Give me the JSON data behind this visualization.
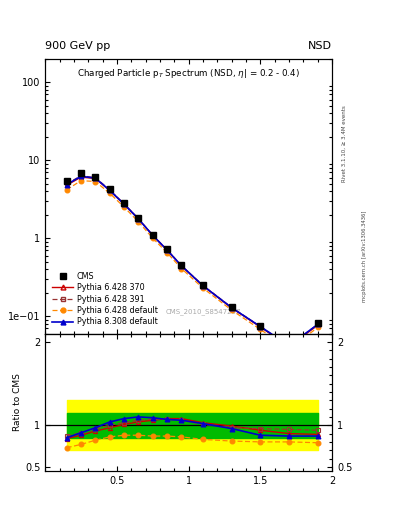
{
  "header_left": "900 GeV pp",
  "header_right": "NSD",
  "title_inside": "Charged Particle p  Spectrum (NSD, η| = 0.2 - 0.4)",
  "right_label_top": "Rivet 3.1.10, ≥ 3.4M events",
  "right_label_bottom": "mcplots.cern.ch [arXiv:1306.3436]",
  "watermark": "CMS_2010_S8547297",
  "pt_values": [
    0.15,
    0.25,
    0.35,
    0.45,
    0.55,
    0.65,
    0.75,
    0.85,
    0.95,
    1.1,
    1.3,
    1.5,
    1.7,
    1.9
  ],
  "cms_data": [
    5.5,
    6.8,
    6.2,
    4.3,
    2.85,
    1.82,
    1.12,
    0.72,
    0.455,
    0.255,
    0.132,
    0.076,
    0.044,
    0.083
  ],
  "pythia_370_data": [
    4.8,
    6.1,
    5.85,
    4.1,
    2.74,
    1.77,
    1.09,
    0.705,
    0.443,
    0.246,
    0.128,
    0.073,
    0.041,
    0.077
  ],
  "pythia_391_data": [
    5.0,
    6.35,
    6.0,
    4.18,
    2.77,
    1.785,
    1.095,
    0.713,
    0.447,
    0.249,
    0.13,
    0.074,
    0.042,
    0.079
  ],
  "pythia_def_data": [
    4.2,
    5.5,
    5.35,
    3.78,
    2.52,
    1.63,
    1.005,
    0.653,
    0.41,
    0.23,
    0.12,
    0.068,
    0.038,
    0.072
  ],
  "pythia_308_data": [
    4.9,
    6.25,
    5.92,
    4.12,
    2.75,
    1.775,
    1.09,
    0.708,
    0.445,
    0.247,
    0.129,
    0.074,
    0.042,
    0.079
  ],
  "ratio_370": [
    0.84,
    0.88,
    0.93,
    0.97,
    1.01,
    1.04,
    1.06,
    1.08,
    1.08,
    1.03,
    0.99,
    0.94,
    0.9,
    0.89
  ],
  "ratio_391": [
    0.87,
    0.91,
    0.96,
    1.0,
    1.03,
    1.06,
    1.07,
    1.07,
    1.06,
    1.01,
    0.97,
    0.96,
    0.95,
    0.94
  ],
  "ratio_def": [
    0.73,
    0.77,
    0.82,
    0.86,
    0.88,
    0.88,
    0.87,
    0.87,
    0.86,
    0.83,
    0.81,
    0.8,
    0.8,
    0.79
  ],
  "ratio_308": [
    0.85,
    0.91,
    0.97,
    1.04,
    1.08,
    1.1,
    1.09,
    1.07,
    1.06,
    1.02,
    0.96,
    0.88,
    0.87,
    0.87
  ],
  "yellow_lo": [
    0.7,
    0.7,
    0.7,
    0.7,
    0.7,
    0.7,
    0.7,
    0.7,
    0.7,
    0.7,
    0.7,
    0.7,
    0.7,
    0.7
  ],
  "yellow_hi": [
    1.3,
    1.3,
    1.3,
    1.3,
    1.3,
    1.3,
    1.3,
    1.3,
    1.3,
    1.3,
    1.3,
    1.3,
    1.3,
    1.3
  ],
  "green_lo": [
    0.85,
    0.85,
    0.85,
    0.85,
    0.85,
    0.85,
    0.85,
    0.85,
    0.85,
    0.85,
    0.85,
    0.85,
    0.85,
    0.85
  ],
  "green_hi": [
    1.15,
    1.15,
    1.15,
    1.15,
    1.15,
    1.15,
    1.15,
    1.15,
    1.15,
    1.15,
    1.15,
    1.15,
    1.15,
    1.15
  ],
  "color_370": "#cc0000",
  "color_391": "#993333",
  "color_def": "#ff8800",
  "color_308": "#0000cc",
  "color_cms": "#000000",
  "color_yellow": "#ffff00",
  "color_green": "#00bb00",
  "ylim_main": [
    0.06,
    200
  ],
  "ylim_ratio": [
    0.45,
    2.1
  ],
  "xlim": [
    0.0,
    2.0
  ],
  "yticks_ratio": [
    0.5,
    1.0,
    2.0
  ],
  "ytick_labels_ratio": [
    "0.5",
    "1",
    "2"
  ],
  "xticks": [
    0.5,
    1.0,
    1.5,
    2.0
  ],
  "xtick_labels": [
    "0.5",
    "1",
    "1.5",
    "2"
  ]
}
